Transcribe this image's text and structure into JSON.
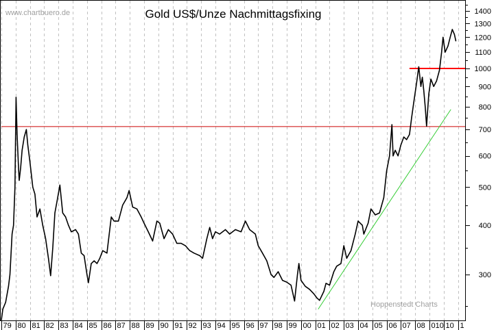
{
  "chart_data": {
    "type": "line",
    "title": "Gold US$/Unze Nachmittagsfixing",
    "watermark_top": "www.chartbuero.de",
    "watermark_bottom": "Hoppenstedt Charts",
    "xlabel": "",
    "ylabel": "",
    "y_scale": "log",
    "ylim": [
      229,
      1490
    ],
    "xlim": [
      1979,
      2011.3
    ],
    "grid": {
      "vertical": true,
      "horizontal": false
    },
    "x_tick_labels": [
      "79",
      "80",
      "81",
      "82",
      "83",
      "84",
      "85",
      "86",
      "87",
      "88",
      "89",
      "90",
      "91",
      "92",
      "93",
      "94",
      "95",
      "96",
      "97",
      "98",
      "99",
      "00",
      "01",
      "02",
      "03",
      "04",
      "05",
      "06",
      "07",
      "08",
      "010",
      "10",
      "1"
    ],
    "y_ticks": [
      300,
      400,
      500,
      600,
      700,
      800,
      900,
      1000,
      1100,
      1200,
      1300,
      1400
    ],
    "y_tick_labels": [
      "300",
      "400",
      "500",
      "600",
      "700",
      "800",
      "900",
      "1000",
      "1100",
      "1200",
      "1300",
      "1400"
    ],
    "colors": {
      "series": "#000000",
      "support_line": "#cc0000",
      "resistance_line": "#ff0000",
      "trend_line": "#33cc33",
      "grid": "#c0c0c0"
    },
    "reference_lines": [
      {
        "value": 712,
        "from": 1979,
        "to": 2011.3,
        "color": "#cc0000"
      },
      {
        "value": 1000,
        "from": 2007.6,
        "to": 2011.3,
        "color": "#ff0000"
      }
    ],
    "trend_line": {
      "from": [
        2001.2,
        245
      ],
      "to": [
        2010.5,
        787
      ],
      "color": "#33cc33"
    },
    "series": [
      {
        "x": [
          1979.0,
          1979.1,
          1979.3,
          1979.5,
          1979.6,
          1979.75,
          1979.85,
          1979.95,
          1980.03,
          1980.1,
          1980.2,
          1980.25,
          1980.35,
          1980.45,
          1980.6,
          1980.75,
          1980.85,
          1981.0,
          1981.2,
          1981.35,
          1981.5,
          1981.7,
          1981.9,
          1982.1,
          1982.3,
          1982.45,
          1982.6,
          1982.75,
          1982.9,
          1983.1,
          1983.3,
          1983.5,
          1983.7,
          1983.9,
          1984.2,
          1984.4,
          1984.6,
          1984.8,
          1985.0,
          1985.1,
          1985.3,
          1985.5,
          1985.7,
          1985.9,
          1986.1,
          1986.4,
          1986.7,
          1986.9,
          1987.2,
          1987.5,
          1987.8,
          1987.95,
          1988.2,
          1988.5,
          1988.8,
          1989.0,
          1989.3,
          1989.6,
          1989.9,
          1990.1,
          1990.4,
          1990.7,
          1991.0,
          1991.3,
          1991.6,
          1991.9,
          1992.2,
          1992.5,
          1992.9,
          1993.1,
          1993.4,
          1993.6,
          1993.8,
          1994.0,
          1994.3,
          1994.7,
          1995.0,
          1995.4,
          1995.8,
          1996.1,
          1996.4,
          1996.8,
          1997.0,
          1997.3,
          1997.6,
          1997.9,
          1998.1,
          1998.4,
          1998.7,
          1999.0,
          1999.3,
          1999.55,
          1999.75,
          1999.85,
          2000.0,
          2000.3,
          2000.6,
          2000.9,
          2001.1,
          2001.3,
          2001.6,
          2001.75,
          2002.0,
          2002.3,
          2002.5,
          2002.8,
          2003.0,
          2003.2,
          2003.5,
          2003.8,
          2004.0,
          2004.3,
          2004.4,
          2004.7,
          2004.9,
          2005.2,
          2005.5,
          2005.8,
          2006.0,
          2006.2,
          2006.37,
          2006.45,
          2006.6,
          2006.8,
          2007.0,
          2007.2,
          2007.4,
          2007.6,
          2007.75,
          2007.9,
          2008.1,
          2008.25,
          2008.4,
          2008.5,
          2008.6,
          2008.7,
          2008.8,
          2008.95,
          2009.1,
          2009.3,
          2009.5,
          2009.7,
          2009.85,
          2009.95,
          2010.1,
          2010.3,
          2010.45,
          2010.6,
          2010.75,
          2010.85
        ],
        "values": [
          230,
          245,
          255,
          280,
          300,
          380,
          400,
          500,
          845,
          680,
          560,
          520,
          560,
          620,
          670,
          700,
          640,
          580,
          500,
          480,
          420,
          440,
          400,
          370,
          330,
          298,
          350,
          430,
          460,
          506,
          430,
          420,
          400,
          385,
          390,
          380,
          340,
          335,
          300,
          286,
          320,
          325,
          320,
          330,
          345,
          340,
          420,
          410,
          410,
          450,
          470,
          490,
          445,
          440,
          420,
          405,
          385,
          365,
          410,
          405,
          370,
          390,
          380,
          360,
          360,
          355,
          345,
          340,
          335,
          330,
          370,
          395,
          370,
          385,
          380,
          390,
          380,
          390,
          385,
          410,
          390,
          380,
          355,
          340,
          325,
          300,
          295,
          305,
          290,
          287,
          282,
          257,
          300,
          320,
          290,
          280,
          275,
          268,
          262,
          258,
          272,
          285,
          282,
          305,
          315,
          320,
          355,
          330,
          345,
          380,
          410,
          400,
          380,
          405,
          440,
          425,
          430,
          470,
          550,
          600,
          720,
          600,
          620,
          600,
          640,
          670,
          660,
          680,
          750,
          820,
          920,
          1010,
          900,
          950,
          880,
          800,
          714,
          860,
          940,
          900,
          930,
          990,
          1100,
          1200,
          1100,
          1140,
          1200,
          1256,
          1220,
          1174
        ]
      }
    ]
  }
}
